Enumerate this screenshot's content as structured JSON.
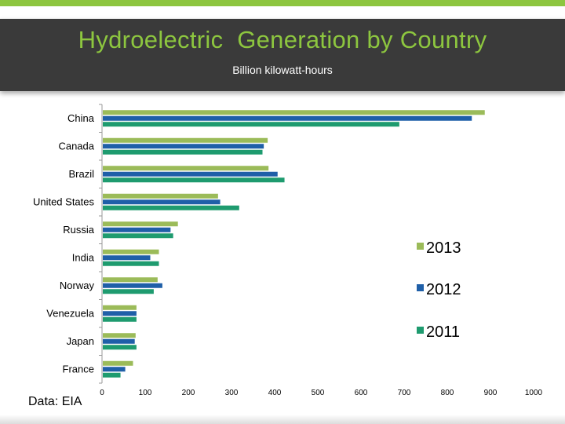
{
  "title": "Hydroelectric  Generation by Country",
  "subtitle": "Billion kilowatt-hours",
  "source": "Data:  EIA",
  "colors": {
    "header_bg": "#3a3a3a",
    "title": "#8dc63f",
    "s2013": "#9bbb59",
    "s2012": "#1f5fa8",
    "s2011": "#1e9b6f"
  },
  "chart_data": {
    "type": "bar",
    "orientation": "horizontal",
    "categories": [
      "China",
      "Canada",
      "Brazil",
      "United States",
      "Russia",
      "India",
      "Norway",
      "Venezuela",
      "Japan",
      "France"
    ],
    "series": [
      {
        "name": "2013",
        "color": "#9bbb59",
        "values": [
          885,
          382,
          384,
          267,
          174,
          130,
          127,
          78,
          76,
          70
        ]
      },
      {
        "name": "2012",
        "color": "#1f5fa8",
        "values": [
          855,
          373,
          405,
          272,
          157,
          110,
          138,
          78,
          74,
          52
        ]
      },
      {
        "name": "2011",
        "color": "#1e9b6f",
        "values": [
          687,
          370,
          421,
          316,
          163,
          130,
          118,
          78,
          78,
          41
        ]
      }
    ],
    "xlim": [
      0,
      1000
    ],
    "xticks": [
      0,
      100,
      200,
      300,
      400,
      500,
      600,
      700,
      800,
      900,
      1000
    ],
    "legend_position": "right",
    "grid": false
  }
}
